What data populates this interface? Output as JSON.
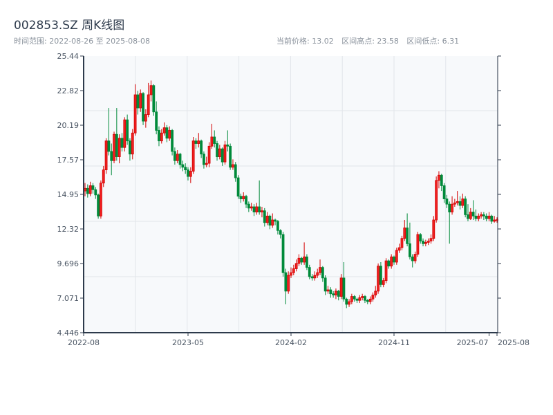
{
  "header": {
    "title": "002853.SZ 周K线图",
    "range_label": "时间范围: 2022-08-26 至 2025-08-08",
    "current_price": "当前价格: 13.02",
    "range_high": "区间高点: 23.58",
    "range_low": "区间低点: 6.31"
  },
  "chart_data": {
    "type": "candlestick",
    "interval": "weekly",
    "x_range": [
      "2022-08-26",
      "2025-08-08"
    ],
    "ylim": [
      4.446,
      25.44
    ],
    "yticks": [
      "25.44",
      "22.82",
      "20.19",
      "17.57",
      "14.95",
      "12.32",
      "9.696",
      "7.071",
      "4.446"
    ],
    "xticks": [
      {
        "index": 0,
        "label": "2022-08"
      },
      {
        "index": 39,
        "label": "2023-05"
      },
      {
        "index": 78,
        "label": "2024-02"
      },
      {
        "index": 117,
        "label": "2024-11"
      },
      {
        "index": 153,
        "label": "2025-07"
      },
      {
        "index": 156,
        "label": "2025-08"
      }
    ],
    "grid": true,
    "colors": {
      "up": "#d40000",
      "up_fill": "#f02020",
      "down": "#008a3a",
      "background": "#f7f9fb",
      "axis": "#2d3a4b",
      "grid": "#e2e5ea"
    },
    "ohlc_order": [
      "open",
      "high",
      "low",
      "close"
    ],
    "candles": [
      [
        15.2,
        15.8,
        14.8,
        15.4
      ],
      [
        15.4,
        15.7,
        14.7,
        15.0
      ],
      [
        15.0,
        15.9,
        14.8,
        15.6
      ],
      [
        15.6,
        15.8,
        15.0,
        15.3
      ],
      [
        15.3,
        15.5,
        14.6,
        14.9
      ],
      [
        14.9,
        15.0,
        13.1,
        13.3
      ],
      [
        13.3,
        16.0,
        13.1,
        15.8
      ],
      [
        15.8,
        17.1,
        15.5,
        16.8
      ],
      [
        16.8,
        19.2,
        16.5,
        19.0
      ],
      [
        19.0,
        21.5,
        17.9,
        18.2
      ],
      [
        18.2,
        18.8,
        16.4,
        17.5
      ],
      [
        17.5,
        19.7,
        17.3,
        19.5
      ],
      [
        19.5,
        21.5,
        17.5,
        17.8
      ],
      [
        17.8,
        19.5,
        17.3,
        19.2
      ],
      [
        19.2,
        19.6,
        18.2,
        18.5
      ],
      [
        18.5,
        20.8,
        18.2,
        20.6
      ],
      [
        20.6,
        21.0,
        18.7,
        19.0
      ],
      [
        19.0,
        19.2,
        17.5,
        18.0
      ],
      [
        18.0,
        19.9,
        17.6,
        19.6
      ],
      [
        19.6,
        23.3,
        19.4,
        22.5
      ],
      [
        22.5,
        22.8,
        21.0,
        21.5
      ],
      [
        21.5,
        22.9,
        21.2,
        22.6
      ],
      [
        22.6,
        22.7,
        20.2,
        20.5
      ],
      [
        20.5,
        21.4,
        20.0,
        21.0
      ],
      [
        21.0,
        23.4,
        20.8,
        22.5
      ],
      [
        22.5,
        23.58,
        22.0,
        23.2
      ],
      [
        23.2,
        23.3,
        20.9,
        21.2
      ],
      [
        21.2,
        22.0,
        19.5,
        19.8
      ],
      [
        19.8,
        20.1,
        18.6,
        19.0
      ],
      [
        19.0,
        19.9,
        18.8,
        19.6
      ],
      [
        19.6,
        20.4,
        19.4,
        20.0
      ],
      [
        20.0,
        20.2,
        18.9,
        19.2
      ],
      [
        19.2,
        20.1,
        19.0,
        19.8
      ],
      [
        19.8,
        19.9,
        17.9,
        18.2
      ],
      [
        18.2,
        18.5,
        17.2,
        17.5
      ],
      [
        17.5,
        18.3,
        17.3,
        18.0
      ],
      [
        18.0,
        18.1,
        16.9,
        17.2
      ],
      [
        17.2,
        17.5,
        16.7,
        17.0
      ],
      [
        17.0,
        17.3,
        16.5,
        16.8
      ],
      [
        16.8,
        17.0,
        16.0,
        16.3
      ],
      [
        16.3,
        17.0,
        15.8,
        16.7
      ],
      [
        16.7,
        19.3,
        16.5,
        19.0
      ],
      [
        19.0,
        19.2,
        18.4,
        18.8
      ],
      [
        18.8,
        19.6,
        18.5,
        19.0
      ],
      [
        19.0,
        19.1,
        17.7,
        18.0
      ],
      [
        18.0,
        18.2,
        16.9,
        17.2
      ],
      [
        17.2,
        17.8,
        17.0,
        17.3
      ],
      [
        17.3,
        18.9,
        17.0,
        18.6
      ],
      [
        18.6,
        20.3,
        18.4,
        19.3
      ],
      [
        19.3,
        19.8,
        18.5,
        18.8
      ],
      [
        18.8,
        19.0,
        17.5,
        17.8
      ],
      [
        17.8,
        18.7,
        17.6,
        18.4
      ],
      [
        18.4,
        18.5,
        17.1,
        17.4
      ],
      [
        17.4,
        19.0,
        17.2,
        18.7
      ],
      [
        18.7,
        19.8,
        18.2,
        18.6
      ],
      [
        18.6,
        18.8,
        16.8,
        17.0
      ],
      [
        17.0,
        17.6,
        16.8,
        17.2
      ],
      [
        17.2,
        17.4,
        15.9,
        16.2
      ],
      [
        16.2,
        16.4,
        14.6,
        14.8
      ],
      [
        14.8,
        15.0,
        14.3,
        14.6
      ],
      [
        14.6,
        15.1,
        14.4,
        14.8
      ],
      [
        14.8,
        14.9,
        13.9,
        14.2
      ],
      [
        14.2,
        14.4,
        13.6,
        13.9
      ],
      [
        13.9,
        14.3,
        13.7,
        14.0
      ],
      [
        14.0,
        14.2,
        13.3,
        13.6
      ],
      [
        13.6,
        14.3,
        13.4,
        14.0
      ],
      [
        14.0,
        16.0,
        13.4,
        13.6
      ],
      [
        13.6,
        14.0,
        13.2,
        13.7
      ],
      [
        13.7,
        13.9,
        12.5,
        12.8
      ],
      [
        12.8,
        13.6,
        12.6,
        13.3
      ],
      [
        13.3,
        13.4,
        12.3,
        12.6
      ],
      [
        12.6,
        13.5,
        12.4,
        13.0
      ],
      [
        13.0,
        13.1,
        12.6,
        12.9
      ],
      [
        12.9,
        13.0,
        11.9,
        12.2
      ],
      [
        12.2,
        12.3,
        11.6,
        11.9
      ],
      [
        11.9,
        12.1,
        8.7,
        9.0
      ],
      [
        9.0,
        9.3,
        6.6,
        7.6
      ],
      [
        7.6,
        9.1,
        7.4,
        8.8
      ],
      [
        8.8,
        9.4,
        8.6,
        9.0
      ],
      [
        9.0,
        9.6,
        8.8,
        9.3
      ],
      [
        9.3,
        10.0,
        9.1,
        9.7
      ],
      [
        9.7,
        10.4,
        9.5,
        10.1
      ],
      [
        10.1,
        10.2,
        9.6,
        9.8
      ],
      [
        9.8,
        11.3,
        9.6,
        10.2
      ],
      [
        10.2,
        10.4,
        9.2,
        9.4
      ],
      [
        9.4,
        9.6,
        8.5,
        8.7
      ],
      [
        8.7,
        8.9,
        8.4,
        8.6
      ],
      [
        8.6,
        9.1,
        8.4,
        8.8
      ],
      [
        8.8,
        9.3,
        8.6,
        9.0
      ],
      [
        9.0,
        10.0,
        8.8,
        9.4
      ],
      [
        9.4,
        9.5,
        8.3,
        8.6
      ],
      [
        8.6,
        8.8,
        7.3,
        7.6
      ],
      [
        7.6,
        8.0,
        7.4,
        7.7
      ],
      [
        7.7,
        7.9,
        7.1,
        7.4
      ],
      [
        7.4,
        7.6,
        7.1,
        7.3
      ],
      [
        7.3,
        7.8,
        7.0,
        7.6
      ],
      [
        7.6,
        7.7,
        6.9,
        7.2
      ],
      [
        7.2,
        8.9,
        7.0,
        8.6
      ],
      [
        8.6,
        9.8,
        6.8,
        7.0
      ],
      [
        7.0,
        7.1,
        6.31,
        6.6
      ],
      [
        6.6,
        7.0,
        6.4,
        6.8
      ],
      [
        6.8,
        7.4,
        6.6,
        7.2
      ],
      [
        7.2,
        7.3,
        6.8,
        7.0
      ],
      [
        7.0,
        7.1,
        6.7,
        6.9
      ],
      [
        6.9,
        7.3,
        6.7,
        7.1
      ],
      [
        7.1,
        7.4,
        6.9,
        7.2
      ],
      [
        7.2,
        7.3,
        6.7,
        6.9
      ],
      [
        6.9,
        7.0,
        6.6,
        6.8
      ],
      [
        6.8,
        7.2,
        6.6,
        7.0
      ],
      [
        7.0,
        7.5,
        6.8,
        7.3
      ],
      [
        7.3,
        8.0,
        7.1,
        7.6
      ],
      [
        7.6,
        9.7,
        7.4,
        9.5
      ],
      [
        9.5,
        9.8,
        7.9,
        8.1
      ],
      [
        8.1,
        8.6,
        7.9,
        8.4
      ],
      [
        8.4,
        10.1,
        8.2,
        9.9
      ],
      [
        9.9,
        10.0,
        9.3,
        9.5
      ],
      [
        9.5,
        10.4,
        9.3,
        10.2
      ],
      [
        10.2,
        10.3,
        9.6,
        9.8
      ],
      [
        9.8,
        10.9,
        9.6,
        10.7
      ],
      [
        10.7,
        11.2,
        10.5,
        10.9
      ],
      [
        10.9,
        11.8,
        10.7,
        11.6
      ],
      [
        11.6,
        13.0,
        11.4,
        12.4
      ],
      [
        12.4,
        13.5,
        11.0,
        11.2
      ],
      [
        11.2,
        12.8,
        10.0,
        10.2
      ],
      [
        10.2,
        10.4,
        9.4,
        9.9
      ],
      [
        9.9,
        10.6,
        9.7,
        10.4
      ],
      [
        10.4,
        12.1,
        10.2,
        11.9
      ],
      [
        11.9,
        12.0,
        11.2,
        11.4
      ],
      [
        11.4,
        11.6,
        11.0,
        11.2
      ],
      [
        11.2,
        11.5,
        11.0,
        11.3
      ],
      [
        11.3,
        11.6,
        11.1,
        11.4
      ],
      [
        11.4,
        11.9,
        11.2,
        11.6
      ],
      [
        11.6,
        13.3,
        11.4,
        13.0
      ],
      [
        13.0,
        16.3,
        12.8,
        16.0
      ],
      [
        16.0,
        16.7,
        15.4,
        16.4
      ],
      [
        16.4,
        16.5,
        15.2,
        15.6
      ],
      [
        15.6,
        15.8,
        14.3,
        14.6
      ],
      [
        14.6,
        14.9,
        13.9,
        14.2
      ],
      [
        14.2,
        14.4,
        11.2,
        13.6
      ],
      [
        13.6,
        14.8,
        13.4,
        14.2
      ],
      [
        14.2,
        14.6,
        14.0,
        14.3
      ],
      [
        14.3,
        15.2,
        14.1,
        14.4
      ],
      [
        14.4,
        14.8,
        13.8,
        14.1
      ],
      [
        14.1,
        15.0,
        13.9,
        14.6
      ],
      [
        14.6,
        14.8,
        13.2,
        13.4
      ],
      [
        13.4,
        14.2,
        12.9,
        13.1
      ],
      [
        13.1,
        13.9,
        13.0,
        13.6
      ],
      [
        13.6,
        14.5,
        13.0,
        13.3
      ],
      [
        13.3,
        13.8,
        12.9,
        13.1
      ],
      [
        13.1,
        13.5,
        12.9,
        13.3
      ],
      [
        13.3,
        13.6,
        13.1,
        13.4
      ],
      [
        13.4,
        13.6,
        13.0,
        13.3
      ],
      [
        13.3,
        13.5,
        12.9,
        13.1
      ],
      [
        13.1,
        13.6,
        12.9,
        13.3
      ],
      [
        13.3,
        13.4,
        12.7,
        12.9
      ],
      [
        12.9,
        13.3,
        12.8,
        13.0
      ],
      [
        13.0,
        13.2,
        12.8,
        13.02
      ]
    ]
  }
}
